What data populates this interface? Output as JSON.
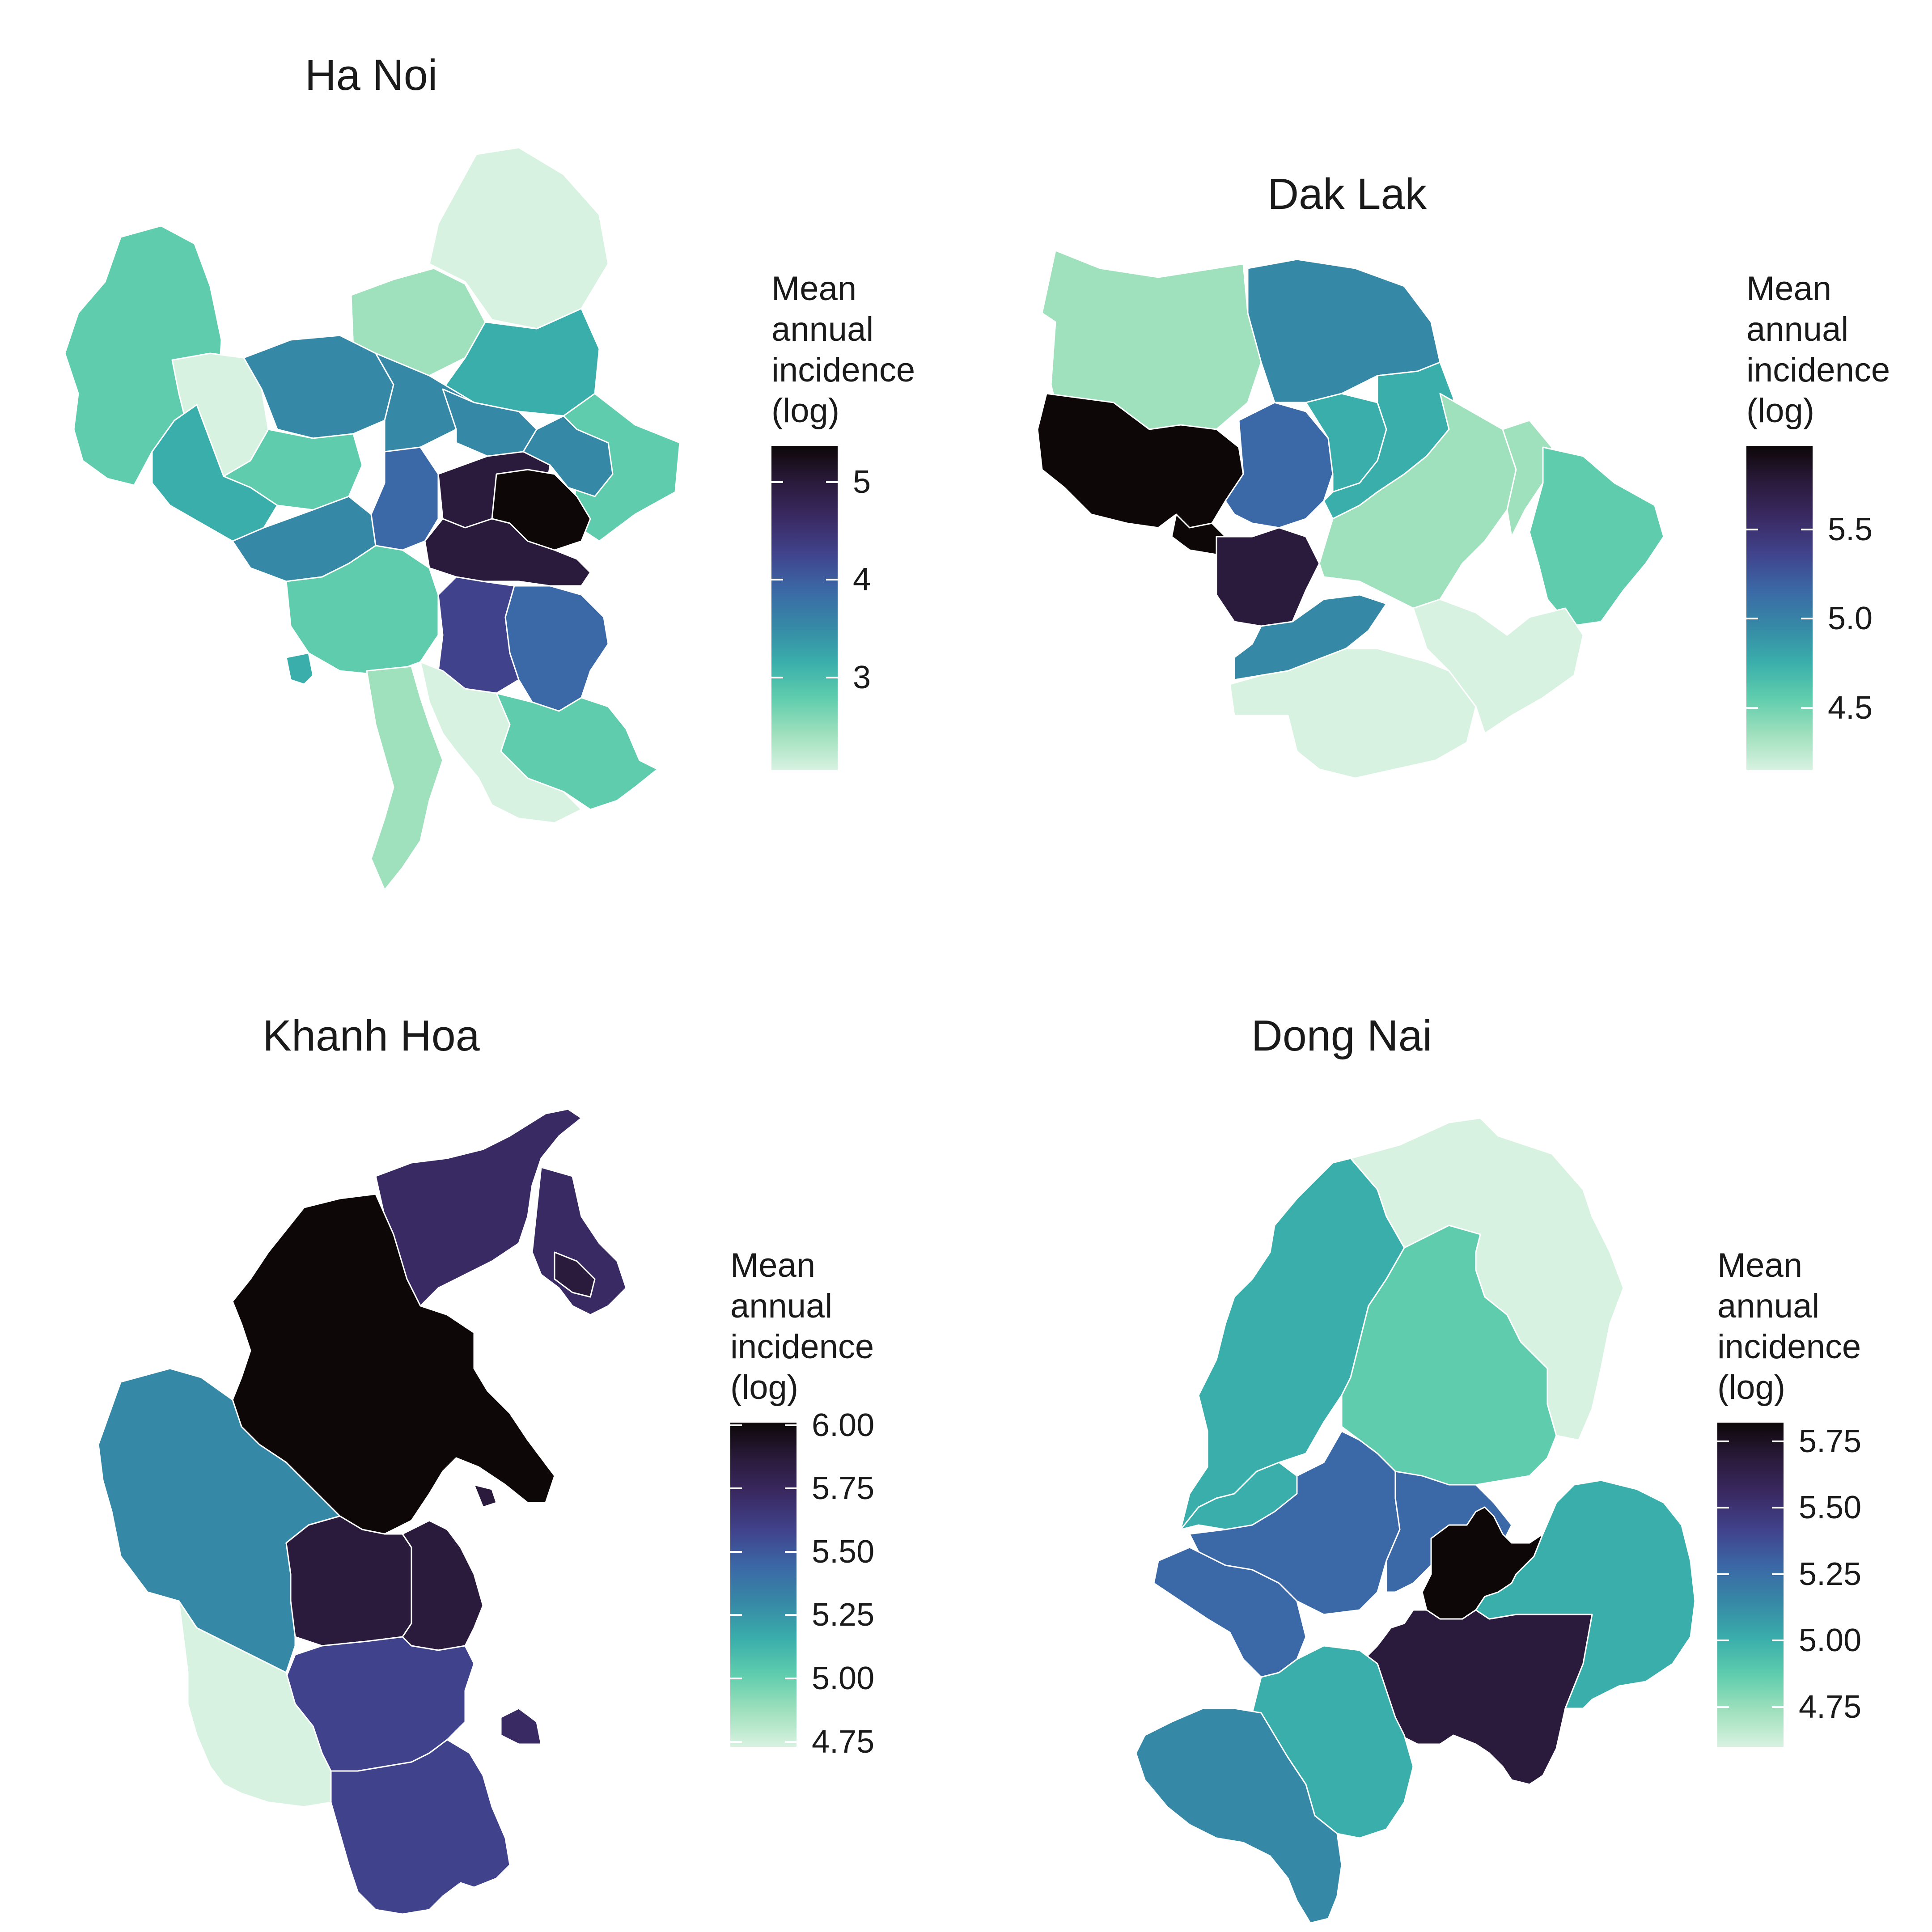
{
  "panels": [
    {
      "title": "Ha Noi",
      "legend": {
        "title_lines": [
          "Mean",
          "annual",
          "incidence",
          "(log)"
        ],
        "ticks": [
          {
            "label": "5",
            "value": 5
          },
          {
            "label": "4",
            "value": 4
          },
          {
            "label": "3",
            "value": 3
          }
        ],
        "range": [
          2.05,
          5.37
        ]
      }
    },
    {
      "title": "Dak Lak",
      "legend": {
        "title_lines": [
          "Mean",
          "annual",
          "incidence",
          "(log)"
        ],
        "ticks": [
          {
            "label": "5.5",
            "value": 5.5
          },
          {
            "label": "5.0",
            "value": 5.0
          },
          {
            "label": "4.5",
            "value": 4.5
          }
        ],
        "range": [
          4.15,
          5.97
        ]
      }
    },
    {
      "title": "Khanh Hoa",
      "legend": {
        "title_lines": [
          "Mean",
          "annual",
          "incidence",
          "(log)"
        ],
        "ticks": [
          {
            "label": "6.00",
            "value": 6.0
          },
          {
            "label": "5.75",
            "value": 5.75
          },
          {
            "label": "5.50",
            "value": 5.5
          },
          {
            "label": "5.25",
            "value": 5.25
          },
          {
            "label": "5.00",
            "value": 5.0
          },
          {
            "label": "4.75",
            "value": 4.75
          }
        ],
        "range": [
          4.73,
          6.01
        ]
      }
    },
    {
      "title": "Dong Nai",
      "legend": {
        "title_lines": [
          "Mean",
          "annual",
          "incidence",
          "(log)"
        ],
        "ticks": [
          {
            "label": "5.75",
            "value": 5.75
          },
          {
            "label": "5.50",
            "value": 5.5
          },
          {
            "label": "5.25",
            "value": 5.25
          },
          {
            "label": "5.00",
            "value": 5.0
          },
          {
            "label": "4.75",
            "value": 4.75
          }
        ],
        "range": [
          4.6,
          5.82
        ]
      }
    }
  ],
  "colors": {
    "scale": [
      "#d8f2e1",
      "#9fe0bd",
      "#5fcdad",
      "#3aaeab",
      "#3689a6",
      "#3b68a6",
      "#40438c",
      "#3a2a63",
      "#2a1a3b",
      "#0d0708"
    ],
    "border": "#ffffff"
  }
}
